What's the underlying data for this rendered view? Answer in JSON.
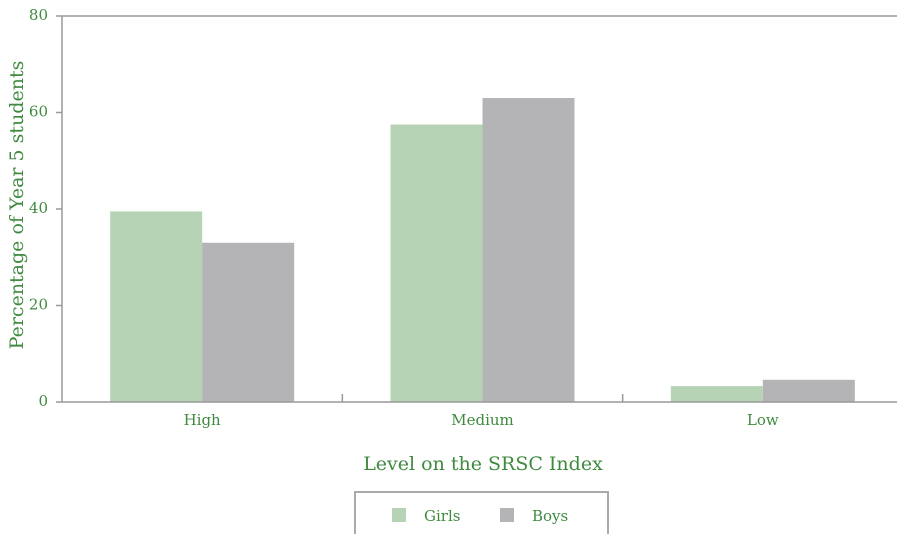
{
  "chart_data": {
    "type": "bar",
    "x_label": "Level on the SRSC Index",
    "y_label": "Percentage of Year 5 students",
    "categories": [
      "High",
      "Medium",
      "Low"
    ],
    "series": [
      {
        "name": "Girls",
        "color": "#b6d4b5",
        "values": [
          39.5,
          57.5,
          3.3
        ]
      },
      {
        "name": "Boys",
        "color": "#b4b4b6",
        "values": [
          33,
          63,
          4.6
        ]
      }
    ],
    "ylim": [
      0,
      80
    ],
    "yticks": [
      0,
      20,
      40,
      60,
      80
    ]
  }
}
